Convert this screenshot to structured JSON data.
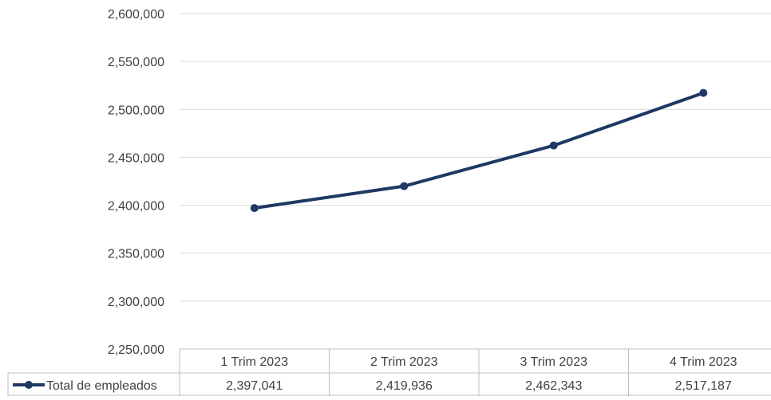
{
  "chart_data": {
    "type": "line",
    "categories": [
      "1 Trim 2023",
      "2 Trim 2023",
      "3 Trim 2023",
      "4 Trim 2023"
    ],
    "series": [
      {
        "name": "Total de empleados",
        "values": [
          2397041,
          2419936,
          2462343,
          2517187
        ],
        "value_labels": [
          "2,397,041",
          "2,419,936",
          "2,462,343",
          "2,517,187"
        ],
        "color": "#1F3864"
      }
    ],
    "ylim": [
      2250000,
      2600000
    ],
    "yticks": [
      2250000,
      2300000,
      2350000,
      2400000,
      2450000,
      2500000,
      2550000,
      2600000
    ],
    "ytick_labels": [
      "2,250,000",
      "2,300,000",
      "2,350,000",
      "2,400,000",
      "2,450,000",
      "2,500,000",
      "2,550,000",
      "2,600,000"
    ],
    "grid": true,
    "legend": "data-table",
    "title": "",
    "xlabel": "",
    "ylabel": ""
  }
}
